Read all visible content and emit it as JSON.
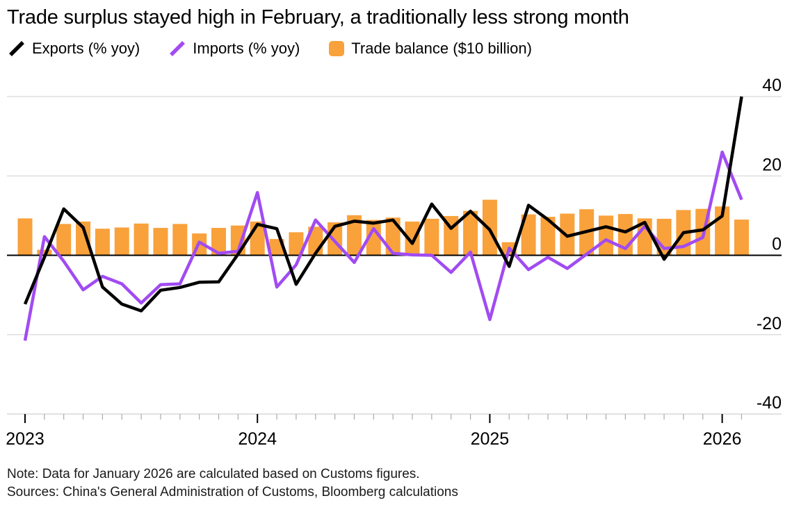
{
  "title": "Trade surplus stayed high in February, a traditionally less strong month",
  "legend": {
    "items": [
      {
        "label": "Exports (% yoy)",
        "swatch": "line",
        "color": "#000000"
      },
      {
        "label": "Imports (% yoy)",
        "swatch": "line",
        "color": "#A14BF2"
      },
      {
        "label": "Trade balance ($10 billion)",
        "swatch": "square",
        "color": "#F9A13B"
      }
    ]
  },
  "footer": {
    "note": "Note: Data for January 2026 are calculated based on Customs figures.",
    "sources": "Sources: China's General Administration of Customs, Bloomberg calculations"
  },
  "colors": {
    "exports_line": "#000000",
    "imports_line": "#A14BF2",
    "trade_balance_bar": "#F9A13B",
    "gridline": "#D8D8D8",
    "zero_line": "#000000",
    "axis_line": "#CFCFCF",
    "minor_tick": "#A9A9A9",
    "major_tick": "#000000",
    "text": "#000000"
  },
  "chart_data": {
    "type": "mixed-bar-line",
    "title": "Trade surplus stayed high in February, a traditionally less strong month",
    "xlabel": "",
    "ylabel": "",
    "ylim": [
      -40,
      40
    ],
    "y_ticks": [
      40,
      20,
      0,
      -20,
      -40
    ],
    "x_major_tick_labels": [
      "2023",
      "2024",
      "2025",
      "2026"
    ],
    "grid": "horizontal",
    "legend_position": "top",
    "x": [
      "Jan 2023",
      "Feb 2023",
      "Mar 2023",
      "Apr 2023",
      "May 2023",
      "Jun 2023",
      "Jul 2023",
      "Aug 2023",
      "Sep 2023",
      "Oct 2023",
      "Nov 2023",
      "Dec 2023",
      "Jan 2024",
      "Feb 2024",
      "Mar 2024",
      "Apr 2024",
      "May 2024",
      "Jun 2024",
      "Jul 2024",
      "Aug 2024",
      "Sep 2024",
      "Oct 2024",
      "Nov 2024",
      "Dec 2024",
      "Jan 2025",
      "Feb 2025",
      "Mar 2025",
      "Apr 2025",
      "May 2025",
      "Jun 2025",
      "Jul 2025",
      "Aug 2025",
      "Sep 2025",
      "Oct 2025",
      "Nov 2025",
      "Dec 2025",
      "Jan 2026",
      "Feb 2026"
    ],
    "series": [
      {
        "name": "Exports (% yoy)",
        "type": "line",
        "color": "#000000",
        "values": [
          -12.3,
          -0.5,
          11.7,
          7.0,
          -8.0,
          -12.3,
          -14.0,
          -8.8,
          -8.1,
          -6.8,
          -6.7,
          0.3,
          7.8,
          6.7,
          -7.3,
          0.5,
          7.3,
          8.6,
          8.1,
          8.9,
          3.0,
          12.9,
          6.8,
          11.1,
          6.4,
          -2.8,
          12.6,
          9.0,
          4.8,
          6.0,
          7.2,
          5.9,
          8.3,
          -1.0,
          5.7,
          6.4,
          9.9,
          40.0
        ]
      },
      {
        "name": "Imports (% yoy)",
        "type": "line",
        "color": "#A14BF2",
        "values": [
          -21.5,
          4.7,
          -1.5,
          -8.7,
          -5.3,
          -7.2,
          -12.0,
          -7.4,
          -7.2,
          3.3,
          0.5,
          1.0,
          15.8,
          -8.0,
          -2.4,
          8.9,
          3.5,
          -1.8,
          6.7,
          0.5,
          0.1,
          0.0,
          -4.3,
          0.8,
          -16.2,
          1.8,
          -3.6,
          -0.5,
          -3.3,
          0.3,
          3.9,
          1.7,
          7.3,
          1.7,
          2.2,
          4.5,
          26.0,
          14.0
        ]
      },
      {
        "name": "Trade balance ($10 billion)",
        "type": "bar",
        "color": "#F9A13B",
        "values": [
          9.3,
          1.4,
          7.9,
          8.5,
          6.7,
          7.0,
          8.0,
          6.9,
          7.9,
          5.5,
          6.9,
          7.5,
          8.5,
          4.1,
          5.8,
          7.2,
          8.3,
          10.1,
          8.9,
          9.5,
          8.5,
          9.2,
          9.9,
          11.2,
          14.0,
          3.3,
          10.3,
          9.7,
          10.5,
          11.6,
          10.0,
          10.4,
          9.3,
          9.2,
          11.4,
          11.7,
          12.3,
          9.0
        ]
      }
    ]
  }
}
